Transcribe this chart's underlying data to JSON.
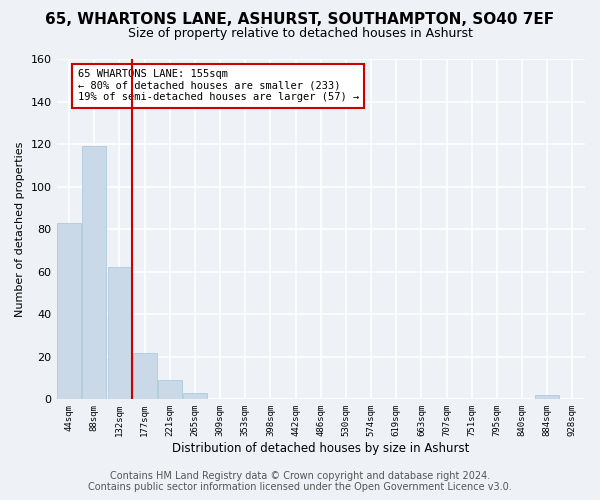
{
  "title1": "65, WHARTONS LANE, ASHURST, SOUTHAMPTON, SO40 7EF",
  "title2": "Size of property relative to detached houses in Ashurst",
  "xlabel": "Distribution of detached houses by size in Ashurst",
  "ylabel": "Number of detached properties",
  "bar_color": "#c9d9e8",
  "bar_edge_color": "#a8c4d8",
  "vline_color": "#cc0000",
  "annotation_text": "65 WHARTONS LANE: 155sqm\n← 80% of detached houses are smaller (233)\n19% of semi-detached houses are larger (57) →",
  "annotation_box_color": "white",
  "annotation_box_edge_color": "#cc0000",
  "bins": [
    "44sqm",
    "88sqm",
    "132sqm",
    "177sqm",
    "221sqm",
    "265sqm",
    "309sqm",
    "353sqm",
    "398sqm",
    "442sqm",
    "486sqm",
    "530sqm",
    "574sqm",
    "619sqm",
    "663sqm",
    "707sqm",
    "751sqm",
    "795sqm",
    "840sqm",
    "884sqm",
    "928sqm"
  ],
  "values": [
    83,
    119,
    62,
    22,
    9,
    3,
    0,
    0,
    0,
    0,
    0,
    0,
    0,
    0,
    0,
    0,
    0,
    0,
    0,
    2,
    0
  ],
  "ylim": [
    0,
    160
  ],
  "yticks": [
    0,
    20,
    40,
    60,
    80,
    100,
    120,
    140,
    160
  ],
  "footer1": "Contains HM Land Registry data © Crown copyright and database right 2024.",
  "footer2": "Contains public sector information licensed under the Open Government Licence v3.0.",
  "bg_color": "#eef2f7",
  "grid_color": "#ffffff",
  "title1_fontsize": 11,
  "title2_fontsize": 9,
  "footer_fontsize": 7
}
